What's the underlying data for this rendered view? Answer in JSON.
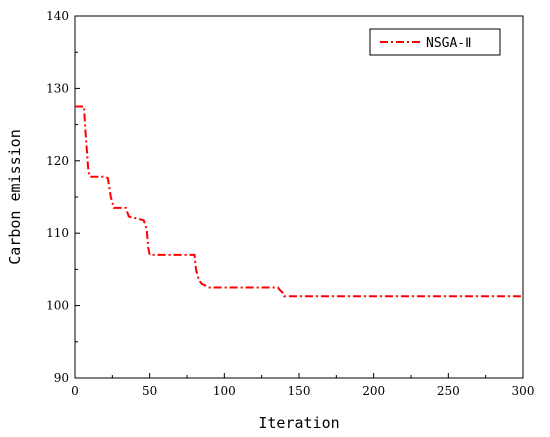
{
  "chart_data": {
    "type": "line",
    "xlabel": "Iteration",
    "ylabel": "Carbon emission",
    "xlim": [
      0,
      300
    ],
    "ylim": [
      90,
      140
    ],
    "x_ticks": [
      0,
      50,
      100,
      150,
      200,
      250,
      300
    ],
    "y_ticks": [
      90,
      100,
      110,
      120,
      130,
      140
    ],
    "grid": false,
    "legend_position": "top-right",
    "series": [
      {
        "name": "NSGA-Ⅱ",
        "color": "#ff0000",
        "line_style": "dash-dot",
        "x": [
          0,
          6,
          7,
          9,
          10,
          20,
          22,
          24,
          26,
          34,
          36,
          46,
          48,
          49,
          50,
          80,
          81,
          83,
          85,
          90,
          136,
          137,
          139,
          140,
          300
        ],
        "y": [
          127.5,
          127.5,
          124,
          118.5,
          117.8,
          117.8,
          117.6,
          115,
          113.5,
          113.5,
          112.3,
          111.8,
          110.5,
          108,
          107,
          107,
          105,
          103.5,
          103,
          102.5,
          102.5,
          102.2,
          101.8,
          101.3,
          101.3
        ]
      }
    ]
  }
}
